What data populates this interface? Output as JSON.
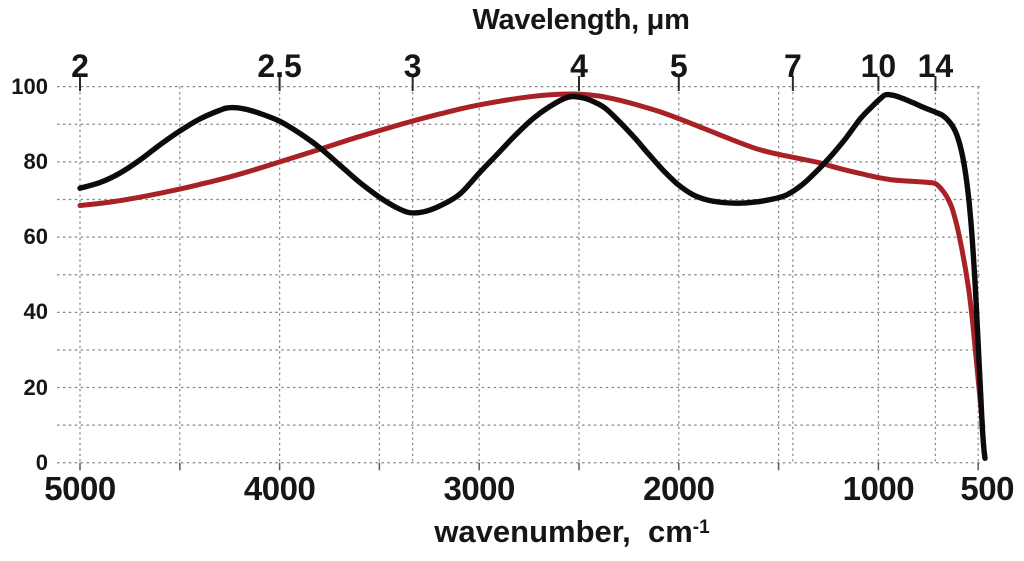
{
  "figure": {
    "top_axis": {
      "title": "Wavelength, μm",
      "ticks": [
        {
          "label": "2",
          "wavenumber": 5000
        },
        {
          "label": "2.5",
          "wavenumber": 4000
        },
        {
          "label": "3",
          "wavenumber": 3333.3
        },
        {
          "label": "4",
          "wavenumber": 2500
        },
        {
          "label": "5",
          "wavenumber": 2000
        },
        {
          "label": "7",
          "wavenumber": 1428.6
        },
        {
          "label": "10",
          "wavenumber": 1000
        },
        {
          "label": "14",
          "wavenumber": 714.3
        }
      ]
    },
    "bottom_axis": {
      "title_text": "wavenumber,  cm",
      "title_superscript": "-1",
      "ticks": [
        {
          "label": "5000",
          "wavenumber": 5000
        },
        {
          "label": "4000",
          "wavenumber": 4000
        },
        {
          "label": "3000",
          "wavenumber": 3000
        },
        {
          "label": "2000",
          "wavenumber": 2000
        },
        {
          "label": "1000",
          "wavenumber": 1000
        },
        {
          "label": "500",
          "wavenumber": 500
        }
      ]
    },
    "left_axis": {
      "ticks": [
        {
          "label": "100",
          "value": 100
        },
        {
          "label": "80",
          "value": 80
        },
        {
          "label": "60",
          "value": 60
        },
        {
          "label": "40",
          "value": 40
        },
        {
          "label": "20",
          "value": 20
        },
        {
          "label": "0",
          "value": 0
        }
      ]
    },
    "colors": {
      "black_curve": "#0b0b0b",
      "red_curve": "#a72125",
      "grid": "#868686",
      "top_tick": "#2a2a2a",
      "bottom_tick": "#5a5a5a",
      "text": "#161616"
    }
  },
  "chart_data": {
    "type": "line",
    "title": "Wavelength, μm",
    "xlabel": "wavenumber, cm⁻¹",
    "ylabel": "",
    "x_axis": {
      "unit": "cm⁻¹",
      "min": 500,
      "max": 5000,
      "direction": "decreasing left to right (5000 at left, 500 at right)",
      "major_tick_labels": [
        5000,
        4000,
        3000,
        2000,
        1000,
        500
      ],
      "gridline_wavenumbers": [
        5000,
        4500,
        4000,
        3500,
        3333.3,
        3000,
        2500,
        2000,
        1500,
        1428.6,
        1000,
        714.3,
        500
      ]
    },
    "secondary_x_axis": {
      "label": "Wavelength, μm",
      "ticks_um": [
        2,
        2.5,
        3,
        4,
        5,
        7,
        10,
        14
      ],
      "tick_wavenumbers": [
        5000,
        4000,
        3333.3,
        2500,
        2000,
        1428.6,
        1000,
        714.3
      ]
    },
    "y_axis": {
      "min": 0,
      "max": 100,
      "label_step": 20,
      "gridline_step": 10
    },
    "grid": {
      "style": "dashed",
      "horizontal_every": 10,
      "vertical_every_cm1": 500
    },
    "legend": "none",
    "series": [
      {
        "name": "black spectrum (oscillating transmission curve)",
        "color": "#0b0b0b",
        "stroke_width": 5.4,
        "points_wavenumber_vs_value": [
          [
            5000,
            73
          ],
          [
            4900,
            74.5
          ],
          [
            4800,
            77
          ],
          [
            4700,
            80.5
          ],
          [
            4600,
            84.5
          ],
          [
            4500,
            88.2
          ],
          [
            4400,
            91.4
          ],
          [
            4300,
            93.7
          ],
          [
            4250,
            94.4
          ],
          [
            4180,
            94.1
          ],
          [
            4100,
            92.9
          ],
          [
            4000,
            90.8
          ],
          [
            3900,
            87.6
          ],
          [
            3800,
            83.8
          ],
          [
            3700,
            79.2
          ],
          [
            3600,
            74.6
          ],
          [
            3500,
            70.6
          ],
          [
            3420,
            68
          ],
          [
            3350,
            66.5
          ],
          [
            3280,
            66.7
          ],
          [
            3200,
            68.2
          ],
          [
            3100,
            71.3
          ],
          [
            3000,
            77
          ],
          [
            2910,
            82
          ],
          [
            2820,
            87
          ],
          [
            2730,
            91.5
          ],
          [
            2650,
            94.6
          ],
          [
            2560,
            97.1
          ],
          [
            2500,
            97.2
          ],
          [
            2440,
            96.3
          ],
          [
            2370,
            94.3
          ],
          [
            2300,
            90.8
          ],
          [
            2220,
            86.3
          ],
          [
            2150,
            82
          ],
          [
            2070,
            77.3
          ],
          [
            2000,
            73.8
          ],
          [
            1930,
            71.3
          ],
          [
            1860,
            69.9
          ],
          [
            1780,
            69.2
          ],
          [
            1700,
            69
          ],
          [
            1620,
            69.3
          ],
          [
            1540,
            70
          ],
          [
            1460,
            71.2
          ],
          [
            1380,
            74
          ],
          [
            1300,
            78
          ],
          [
            1230,
            82
          ],
          [
            1160,
            86.5
          ],
          [
            1090,
            91.5
          ],
          [
            1030,
            94.8
          ],
          [
            990,
            96.8
          ],
          [
            965,
            97.8
          ],
          [
            925,
            97.7
          ],
          [
            880,
            96.9
          ],
          [
            830,
            95.8
          ],
          [
            780,
            94.6
          ],
          [
            714,
            93.2
          ],
          [
            680,
            92.4
          ],
          [
            650,
            91
          ],
          [
            620,
            88.7
          ],
          [
            595,
            85.2
          ],
          [
            572,
            79.8
          ],
          [
            553,
            72.8
          ],
          [
            538,
            65
          ],
          [
            526,
            56.5
          ],
          [
            516,
            48
          ],
          [
            508,
            40
          ],
          [
            500,
            31.5
          ],
          [
            493,
            24
          ],
          [
            486,
            16.5
          ],
          [
            479,
            9
          ],
          [
            472,
            4
          ],
          [
            466,
            1.2
          ]
        ]
      },
      {
        "name": "red spectrum (smooth transmission curve)",
        "color": "#a72125",
        "stroke_width": 5,
        "points_wavenumber_vs_value": [
          [
            5000,
            68.4
          ],
          [
            4850,
            69.3
          ],
          [
            4700,
            70.6
          ],
          [
            4550,
            72.2
          ],
          [
            4400,
            74
          ],
          [
            4250,
            76
          ],
          [
            4100,
            78.3
          ],
          [
            3950,
            80.8
          ],
          [
            3800,
            83.3
          ],
          [
            3650,
            85.9
          ],
          [
            3500,
            88.3
          ],
          [
            3350,
            90.6
          ],
          [
            3200,
            92.7
          ],
          [
            3050,
            94.6
          ],
          [
            2900,
            96.1
          ],
          [
            2750,
            97.3
          ],
          [
            2620,
            97.9
          ],
          [
            2500,
            98
          ],
          [
            2400,
            97.5
          ],
          [
            2300,
            96.4
          ],
          [
            2200,
            95
          ],
          [
            2100,
            93.4
          ],
          [
            2000,
            91.5
          ],
          [
            1900,
            89.4
          ],
          [
            1800,
            87.3
          ],
          [
            1700,
            85.2
          ],
          [
            1600,
            83.3
          ],
          [
            1500,
            82
          ],
          [
            1400,
            80.9
          ],
          [
            1300,
            79.8
          ],
          [
            1200,
            78.3
          ],
          [
            1100,
            77
          ],
          [
            1000,
            75.8
          ],
          [
            930,
            75.2
          ],
          [
            860,
            74.9
          ],
          [
            800,
            74.7
          ],
          [
            750,
            74.5
          ],
          [
            714,
            74.2
          ],
          [
            685,
            72.8
          ],
          [
            658,
            70.8
          ],
          [
            632,
            67.8
          ],
          [
            610,
            63.8
          ],
          [
            590,
            59
          ],
          [
            572,
            54
          ],
          [
            556,
            49
          ],
          [
            541,
            43.5
          ],
          [
            528,
            37.5
          ],
          [
            517,
            31.5
          ],
          [
            507,
            26
          ],
          [
            498,
            21
          ],
          [
            490,
            16.5
          ],
          [
            483,
            12.5
          ],
          [
            477,
            9.5
          ]
        ]
      }
    ]
  }
}
